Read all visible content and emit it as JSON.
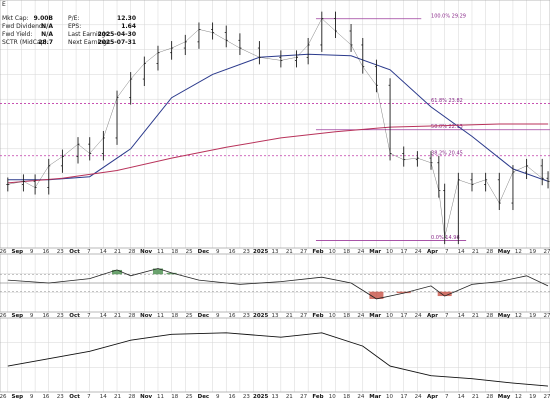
{
  "fundamentals": {
    "symbol_tail": "E",
    "left": [
      {
        "label": "Mkt Cap:",
        "value": "9.00B"
      },
      {
        "label": "Fwd Dividend:",
        "value": "N/A"
      },
      {
        "label": "Fwd Yield:",
        "value": "N/A"
      },
      {
        "label": "SCTR (MidCap):",
        "value": "28.7"
      }
    ],
    "right": [
      {
        "label": "P/E:",
        "value": "12.30"
      },
      {
        "label": "EPS:",
        "value": "1.64"
      },
      {
        "label": "Last Earnings:",
        "value": "2025-04-30"
      },
      {
        "label": "Next Earnings:",
        "value": "2025-07-31"
      }
    ]
  },
  "colors": {
    "price": "#1a1a1a",
    "sma50": "#2b3a8c",
    "sma200": "#b8325a",
    "fib": "#9c3c9c",
    "fib_dashed": "#c03aa8",
    "grid": "#d6d6d6",
    "positive_fill": "#2e7d32",
    "negative_fill": "#c0392b"
  },
  "chart_data": {
    "type": "line",
    "x_axis": {
      "range": [
        "2024-08-22",
        "2025-05-31"
      ],
      "tick_labels": [
        "26",
        "Sep",
        "9",
        "16",
        "23",
        "Oct",
        "7",
        "14",
        "21",
        "28",
        "Nov",
        "11",
        "18",
        "25",
        "Dec",
        "9",
        "16",
        "23",
        "2025",
        "13",
        "21",
        "27",
        "Feb",
        "10",
        "18",
        "24",
        "Mar",
        "10",
        "17",
        "24",
        "Apr",
        "7",
        "14",
        "21",
        "28",
        "May",
        "12",
        "19",
        "27"
      ]
    },
    "price_panel": {
      "y_range": [
        14.5,
        30.5
      ],
      "fib_levels": [
        {
          "label": "100.0% 29.29",
          "value": 29.29
        },
        {
          "label": "61.8% 23.82",
          "value": 23.82
        },
        {
          "label": "50.0% 22.13",
          "value": 22.13
        },
        {
          "label": "38.2% 20.45",
          "value": 20.45
        },
        {
          "label": "0.0% 14.98",
          "value": 14.98
        }
      ],
      "series": [
        {
          "name": "",
          "role": "price",
          "x": [
            "2024-08-26",
            "2024-09-03",
            "2024-09-09",
            "2024-09-16",
            "2024-09-23",
            "2024-10-01",
            "2024-10-07",
            "2024-10-14",
            "2024-10-21",
            "2024-10-28",
            "2024-11-04",
            "2024-11-11",
            "2024-11-18",
            "2024-11-25",
            "2024-12-02",
            "2024-12-09",
            "2024-12-16",
            "2024-12-23",
            "2025-01-02",
            "2025-01-13",
            "2025-01-21",
            "2025-01-27",
            "2025-02-03",
            "2025-02-10",
            "2025-02-18",
            "2025-02-24",
            "2025-03-03",
            "2025-03-10",
            "2025-03-17",
            "2025-03-24",
            "2025-03-31",
            "2025-04-04",
            "2025-04-07",
            "2025-04-14",
            "2025-04-21",
            "2025-04-28",
            "2025-05-05",
            "2025-05-12",
            "2025-05-19",
            "2025-05-27",
            "2025-05-30"
          ],
          "y": [
            18.6,
            18.8,
            18.4,
            19.8,
            20.4,
            21.2,
            20.6,
            21.6,
            24.2,
            25.4,
            26.4,
            27.1,
            27.4,
            27.8,
            28.6,
            28.4,
            27.9,
            27.4,
            26.8,
            26.6,
            26.8,
            27.6,
            29.3,
            28.5,
            27.6,
            26.2,
            25.0,
            20.6,
            20.2,
            20.3,
            20.0,
            18.2,
            15.2,
            18.9,
            18.6,
            18.9,
            17.4,
            19.4,
            19.8,
            19.0,
            18.8
          ]
        },
        {
          "name": "",
          "role": "sma50",
          "x": [
            "2024-08-26",
            "2024-09-16",
            "2024-10-07",
            "2024-10-28",
            "2024-11-18",
            "2024-12-09",
            "2025-01-02",
            "2025-01-27",
            "2025-02-18",
            "2025-03-10",
            "2025-03-31",
            "2025-04-21",
            "2025-05-12",
            "2025-05-30"
          ],
          "y": [
            18.9,
            18.9,
            19.1,
            20.9,
            24.2,
            25.7,
            26.8,
            27.0,
            26.9,
            26.0,
            23.6,
            21.7,
            19.6,
            18.8
          ]
        },
        {
          "name": "",
          "role": "sma200",
          "x": [
            "2024-08-26",
            "2024-09-23",
            "2024-10-21",
            "2024-11-18",
            "2024-12-16",
            "2025-01-13",
            "2025-02-10",
            "2025-03-10",
            "2025-04-07",
            "2025-05-05",
            "2025-05-30"
          ],
          "y": [
            18.7,
            19.0,
            19.5,
            20.3,
            21.0,
            21.6,
            22.0,
            22.3,
            22.4,
            22.5,
            22.5
          ]
        }
      ]
    },
    "momentum_panel": {
      "y_range": [
        -1,
        1
      ],
      "x": [
        "2024-08-26",
        "2024-09-16",
        "2024-10-07",
        "2024-10-21",
        "2024-10-28",
        "2024-11-11",
        "2024-11-18",
        "2024-12-02",
        "2024-12-23",
        "2025-01-13",
        "2025-02-03",
        "2025-02-18",
        "2025-03-03",
        "2025-03-17",
        "2025-03-31",
        "2025-04-07",
        "2025-04-21",
        "2025-05-05",
        "2025-05-19",
        "2025-05-30"
      ],
      "y": [
        0.1,
        0.0,
        0.15,
        0.45,
        0.25,
        0.5,
        0.35,
        0.1,
        -0.05,
        0.05,
        0.2,
        0.0,
        -0.55,
        -0.35,
        -0.1,
        -0.45,
        -0.05,
        0.05,
        0.25,
        -0.1
      ]
    },
    "ratio_panel": {
      "y_range": [
        0,
        1
      ],
      "x": [
        "2024-08-26",
        "2024-09-16",
        "2024-10-07",
        "2024-10-28",
        "2024-11-18",
        "2024-12-16",
        "2025-01-13",
        "2025-02-03",
        "2025-02-24",
        "2025-03-10",
        "2025-03-31",
        "2025-04-21",
        "2025-05-12",
        "2025-05-30"
      ],
      "y": [
        0.35,
        0.45,
        0.55,
        0.7,
        0.78,
        0.8,
        0.74,
        0.8,
        0.62,
        0.35,
        0.22,
        0.18,
        0.12,
        0.08
      ]
    }
  }
}
